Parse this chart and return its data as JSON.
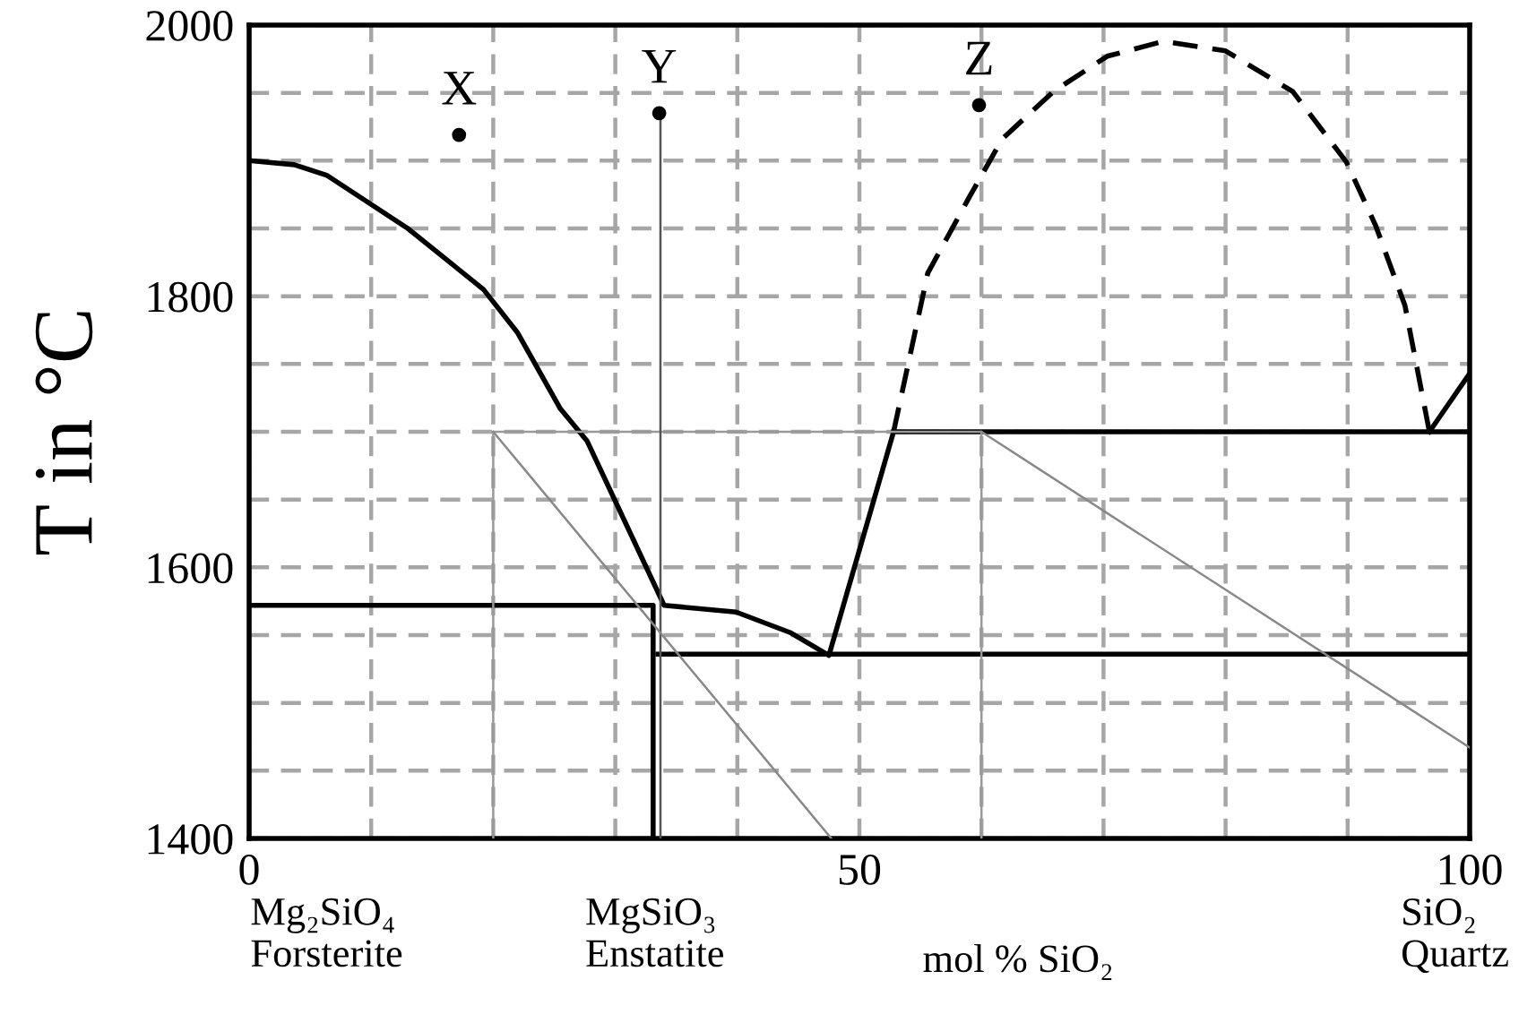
{
  "chart_data": {
    "type": "line",
    "ylabel": "T in °C",
    "xlabel": "mol % SiO₂",
    "xlim": [
      0,
      100
    ],
    "ylim": [
      1400,
      2000
    ],
    "xticks": [
      0,
      {
        "value": 10,
        "label": null
      },
      {
        "value": 20,
        "label": null
      },
      {
        "value": 30,
        "label": null
      },
      {
        "value": 40,
        "label": null
      },
      50,
      {
        "value": 60,
        "label": null
      },
      {
        "value": 70,
        "label": null
      },
      {
        "value": 80,
        "label": null
      },
      {
        "value": 90,
        "label": null
      },
      100
    ],
    "yticks": [
      1400,
      {
        "value": 1450,
        "label": null
      },
      {
        "value": 1500,
        "label": null
      },
      {
        "value": 1550,
        "label": null
      },
      1600,
      {
        "value": 1650,
        "label": null
      },
      {
        "value": 1700,
        "label": null
      },
      {
        "value": 1750,
        "label": null
      },
      1800,
      {
        "value": 1850,
        "label": null
      },
      {
        "value": 1900,
        "label": null
      },
      {
        "value": 1950,
        "label": null
      },
      2000
    ],
    "grid": true,
    "legend": false,
    "line_style": "solid",
    "marker": "none",
    "series": [
      {
        "color": "#000000",
        "x": [
          0,
          3.7,
          6.4,
          13,
          19.2,
          22,
          25.5,
          27.7,
          34,
          39.9,
          44.3,
          47.5,
          52.8
        ],
        "values": [
          1900,
          1897,
          1889,
          1850,
          1805,
          1773,
          1717,
          1693,
          1572,
          1567,
          1552,
          1535,
          1700
        ]
      },
      {
        "color": "#000000",
        "line_style": "dashed",
        "x": [
          52.8,
          55.6,
          59,
          61.7,
          65.9,
          70.3,
          74.9,
          80,
          85.5,
          89.9,
          92.3,
          94.7,
          96.7
        ],
        "values": [
          1700,
          1817,
          1873,
          1916,
          1951,
          1977,
          1988,
          1981,
          1951,
          1899,
          1852,
          1793,
          1700
        ]
      },
      {
        "color": "#000000",
        "x": [
          96.7,
          100
        ],
        "values": [
          1700,
          1743
        ]
      },
      {
        "color": "#000000",
        "x": [
          52.8,
          100
        ],
        "values": [
          1700,
          1700
        ]
      },
      {
        "color": "#000000",
        "x": [
          0,
          33.1,
          33.1
        ],
        "values": [
          1572,
          1572,
          1400
        ]
      },
      {
        "color": "#000000",
        "x": [
          33.5,
          100
        ],
        "values": [
          1536,
          1536
        ]
      },
      {
        "color": "#999999",
        "x": [
          20,
          20,
          60,
          60
        ],
        "values": [
          1400,
          1700,
          1700,
          1400
        ]
      },
      {
        "color": "#555555",
        "x": [
          33.7,
          33.7
        ],
        "values": [
          1400,
          1935
        ]
      },
      {
        "color": "#888888",
        "x": [
          20,
          47.7
        ],
        "values": [
          1700,
          1400
        ]
      },
      {
        "color": "#888888",
        "x": [
          60,
          100
        ],
        "values": [
          1700,
          1467
        ]
      },
      {
        "type": "scatter",
        "marker": "circle",
        "color": "#000000",
        "x": [
          17.2,
          33.6,
          59.8
        ],
        "values": [
          1919,
          1935,
          1941
        ]
      }
    ],
    "annotations": [
      {
        "text": "X",
        "x": 17.2,
        "y": 1919
      },
      {
        "text": "Y",
        "x": 33.6,
        "y": 1935
      },
      {
        "text": "Z",
        "x": 59.8,
        "y": 1941
      },
      "Mg₂SiO₄\nForsterite",
      "MgSiO₃\nEnstatite",
      "SiO₂\nQuartz"
    ]
  }
}
